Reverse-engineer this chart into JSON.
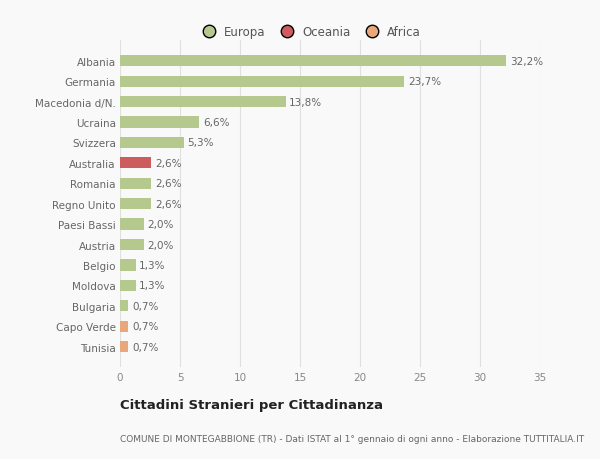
{
  "countries": [
    "Albania",
    "Germania",
    "Macedonia d/N.",
    "Ucraina",
    "Svizzera",
    "Australia",
    "Romania",
    "Regno Unito",
    "Paesi Bassi",
    "Austria",
    "Belgio",
    "Moldova",
    "Bulgaria",
    "Capo Verde",
    "Tunisia"
  ],
  "values": [
    32.2,
    23.7,
    13.8,
    6.6,
    5.3,
    2.6,
    2.6,
    2.6,
    2.0,
    2.0,
    1.3,
    1.3,
    0.7,
    0.7,
    0.7
  ],
  "labels": [
    "32,2%",
    "23,7%",
    "13,8%",
    "6,6%",
    "5,3%",
    "2,6%",
    "2,6%",
    "2,6%",
    "2,0%",
    "2,0%",
    "1,3%",
    "1,3%",
    "0,7%",
    "0,7%",
    "0,7%"
  ],
  "colors": [
    "#b5c98e",
    "#b5c98e",
    "#b5c98e",
    "#b5c98e",
    "#b5c98e",
    "#cd5c5c",
    "#b5c98e",
    "#b5c98e",
    "#b5c98e",
    "#b5c98e",
    "#b5c98e",
    "#b5c98e",
    "#b5c98e",
    "#e8a87c",
    "#e8a87c"
  ],
  "legend_colors": {
    "Europa": "#b5c98e",
    "Oceania": "#cd5c5c",
    "Africa": "#e8a87c"
  },
  "xlim": [
    0,
    35
  ],
  "xticks": [
    0,
    5,
    10,
    15,
    20,
    25,
    30,
    35
  ],
  "title": "Cittadini Stranieri per Cittadinanza",
  "subtitle": "COMUNE DI MONTEGABBIONE (TR) - Dati ISTAT al 1° gennaio di ogni anno - Elaborazione TUTTITALIA.IT",
  "background_color": "#f9f9f9",
  "grid_color": "#e0e0e0",
  "bar_height": 0.55,
  "label_fontsize": 7.5,
  "tick_fontsize": 7.5,
  "title_fontsize": 9.5,
  "subtitle_fontsize": 6.5
}
